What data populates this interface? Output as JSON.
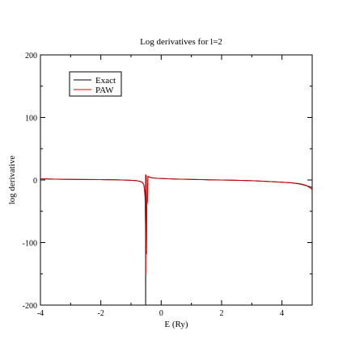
{
  "chart_data": {
    "type": "line",
    "title": "Log derivatives for l=2",
    "xlabel": "E (Ry)",
    "ylabel": "log derivative",
    "xlim": [
      -4,
      5
    ],
    "ylim": [
      -200,
      200
    ],
    "x_major_ticks": [
      -4,
      -2,
      0,
      2,
      4
    ],
    "y_major_ticks": [
      -200,
      -100,
      0,
      100,
      200
    ],
    "x_tick_labels": [
      "-4",
      "-2",
      "0",
      "2",
      "4"
    ],
    "y_tick_labels": [
      "-200",
      "-100",
      "0",
      "100",
      "200"
    ],
    "grid": false,
    "legend_position": "top-left",
    "series": [
      {
        "name": "Exact",
        "color": "#000000",
        "x": [
          -4.0,
          -3.5,
          -3.0,
          -2.5,
          -2.0,
          -1.5,
          -1.0,
          -0.8,
          -0.7,
          -0.62,
          -0.57,
          -0.535,
          -0.52,
          -0.515,
          -0.515,
          -0.5,
          -0.49,
          -0.48,
          -0.46,
          -0.44,
          -0.42,
          -0.38,
          -0.3,
          -0.1,
          0.5,
          1.0,
          1.5,
          2.0,
          2.5,
          3.0,
          3.5,
          4.0,
          4.3,
          4.6,
          4.8,
          5.0
        ],
        "y": [
          2.0,
          1.3,
          1.0,
          0.8,
          0.6,
          0.3,
          -0.5,
          -1.2,
          -2.2,
          -4.0,
          -8.0,
          -25.0,
          -70.0,
          -200.0,
          8.0,
          6.0,
          -118.0,
          -40.0,
          -35.0,
          6.0,
          5.5,
          4.5,
          3.5,
          2.5,
          1.5,
          0.9,
          0.4,
          0.0,
          -0.5,
          -1.2,
          -2.2,
          -3.5,
          -4.5,
          -6.5,
          -9.0,
          -12.0
        ]
      },
      {
        "name": "PAW",
        "color": "#cc0000",
        "x": [
          -4.0,
          -3.5,
          -3.0,
          -2.5,
          -2.0,
          -1.5,
          -1.0,
          -0.8,
          -0.7,
          -0.62,
          -0.57,
          -0.535,
          -0.52,
          -0.512,
          -0.5,
          -0.49,
          -0.48,
          -0.46,
          -0.44,
          -0.42,
          -0.38,
          -0.3,
          -0.1,
          0.5,
          1.0,
          1.5,
          2.0,
          2.5,
          3.0,
          3.5,
          4.0,
          4.3,
          4.6,
          4.8,
          5.0
        ],
        "y": [
          2.0,
          1.3,
          1.0,
          0.8,
          0.6,
          0.3,
          -0.5,
          -1.2,
          -2.2,
          -4.0,
          -8.0,
          -25.0,
          -70.0,
          -150.0,
          8.0,
          -113.0,
          -40.0,
          -35.0,
          6.0,
          5.5,
          4.5,
          3.5,
          2.5,
          1.5,
          0.9,
          0.4,
          0.0,
          -0.5,
          -1.2,
          -2.2,
          -3.5,
          -4.3,
          -6.0,
          -8.5,
          -15.0
        ]
      }
    ]
  }
}
